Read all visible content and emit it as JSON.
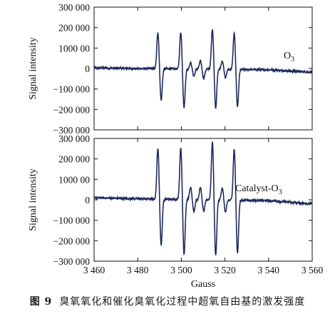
{
  "caption": {
    "number": "图 9",
    "text": "臭氧氧化和催化臭氧化过程中超氧自由基的激发强度"
  },
  "chart_data": [
    {
      "type": "line",
      "label": "O3",
      "label_sub": "3",
      "label_main": "O",
      "ylabel": "Signal intensity",
      "xlabel": "",
      "xlim": [
        3460,
        3560
      ],
      "ylim": [
        -300000,
        300000
      ],
      "yticks": [
        -300000,
        -200000,
        -100000,
        0,
        100000,
        200000,
        300000
      ],
      "ytick_labels": [
        "−300 000",
        "−200 000",
        "−100 000",
        "0",
        "1000 00",
        "200 000",
        "300 000"
      ],
      "baseline": [
        [
          3460,
          3000
        ],
        [
          3480,
          0
        ],
        [
          3540,
          -6000
        ],
        [
          3560,
          -18000
        ]
      ],
      "peaks": [
        {
          "x": 3490,
          "up": 178000,
          "down": -155000
        },
        {
          "x": 3500.5,
          "up": 180000,
          "down": -190000
        },
        {
          "x": 3505,
          "up": 30000,
          "down": -35000
        },
        {
          "x": 3509.5,
          "up": 40000,
          "down": -45000
        },
        {
          "x": 3515,
          "up": 198000,
          "down": -190000
        },
        {
          "x": 3519.5,
          "up": 40000,
          "down": -40000
        },
        {
          "x": 3525,
          "up": 178000,
          "down": -185000
        }
      ],
      "line_color": "#1f2a5a"
    },
    {
      "type": "line",
      "label": "Catalyst-O3",
      "label_main": "Catalyst-O",
      "label_sub": "3",
      "ylabel": "Signal intensity",
      "xlabel": "Gauss",
      "xlim": [
        3460,
        3560
      ],
      "ylim": [
        -300000,
        300000
      ],
      "xticks": [
        3460,
        3480,
        3500,
        3520,
        3540,
        3560
      ],
      "xtick_labels": [
        "3 460",
        "3 480",
        "3 500",
        "3 520",
        "3 540",
        "3 560"
      ],
      "yticks": [
        -300000,
        -200000,
        -100000,
        0,
        100000,
        200000,
        300000
      ],
      "ytick_labels": [
        "−300 000",
        "−200 000",
        "−100 000",
        "0",
        "1000 00",
        "200 000",
        "300 000"
      ],
      "baseline": [
        [
          3460,
          10000
        ],
        [
          3480,
          5000
        ],
        [
          3540,
          -4000
        ],
        [
          3560,
          -20000
        ]
      ],
      "peaks": [
        {
          "x": 3490,
          "up": 250000,
          "down": -225000
        },
        {
          "x": 3500.5,
          "up": 255000,
          "down": -270000
        },
        {
          "x": 3505,
          "up": 60000,
          "down": -60000
        },
        {
          "x": 3509.5,
          "up": 60000,
          "down": -55000
        },
        {
          "x": 3515,
          "up": 285000,
          "down": -275000
        },
        {
          "x": 3519.5,
          "up": 60000,
          "down": -60000
        },
        {
          "x": 3525,
          "up": 250000,
          "down": -260000
        }
      ],
      "line_color": "#1f2a5a"
    }
  ]
}
